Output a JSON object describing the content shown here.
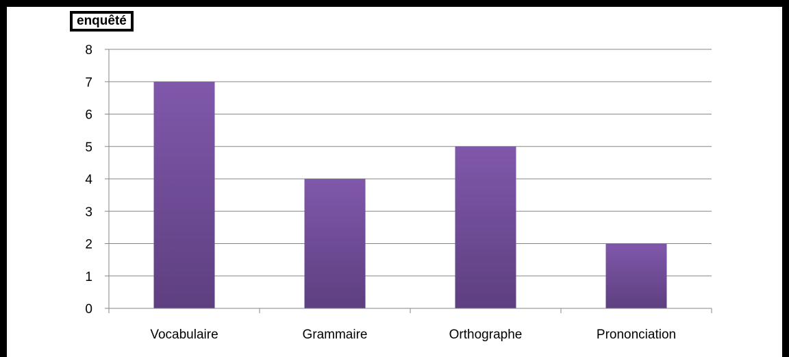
{
  "chart_data": {
    "type": "bar",
    "title": "enquêté",
    "categories": [
      "Vocabulaire",
      "Grammaire",
      "Orthographe",
      "Prononciation"
    ],
    "values": [
      7,
      4,
      5,
      2
    ],
    "ylim": [
      0,
      8
    ],
    "yticks": [
      "0",
      "1",
      "2",
      "3",
      "4",
      "5",
      "6",
      "7",
      "8"
    ],
    "xlabel": "",
    "ylabel": "",
    "grid": true,
    "legend": "none",
    "bar_color_top": "#8058ab",
    "bar_color_bottom": "#5e3f80",
    "grid_color": "#868686"
  }
}
